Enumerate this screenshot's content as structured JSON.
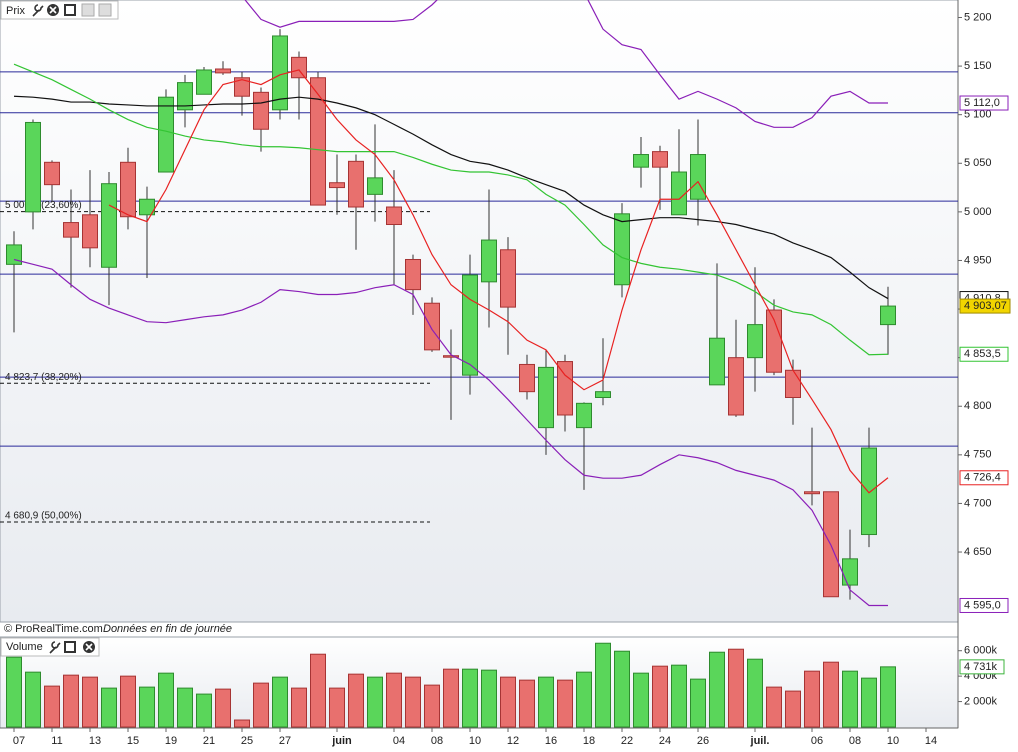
{
  "chart_data": [
    {
      "type": "candlestick",
      "title": "Prix",
      "up_color": "#5ad65a",
      "down_color": "#e8706e",
      "up_edge": "#2e8b2e",
      "down_edge": "#a63434",
      "ylim": [
        4578,
        5218
      ],
      "yticks": [
        {
          "value": 5200,
          "label": "5 200"
        },
        {
          "value": 5150,
          "label": "5 150"
        },
        {
          "value": 5100,
          "label": "5 100"
        },
        {
          "value": 5050,
          "label": "5 050"
        },
        {
          "value": 5000,
          "label": "5 000"
        },
        {
          "value": 4950,
          "label": "4 950"
        },
        {
          "value": 4900,
          "label": "4 900"
        },
        {
          "value": 4850,
          "label": "4 850"
        },
        {
          "value": 4800,
          "label": "4 800"
        },
        {
          "value": 4750,
          "label": "4 750"
        },
        {
          "value": 4700,
          "label": "4 700"
        },
        {
          "value": 4650,
          "label": "4 650"
        }
      ],
      "open": [
        4946,
        5000,
        5051,
        4989,
        4997,
        4943,
        5051,
        4997,
        5041,
        5105,
        5121,
        5147,
        5138,
        5123,
        5105,
        5159,
        5138,
        5030,
        5052,
        5018,
        5005,
        4951,
        4906,
        4852,
        4832,
        4928,
        4961,
        4843,
        4778,
        4846,
        4778,
        4809,
        4925,
        5046,
        5062,
        4997,
        5013,
        4822,
        4850,
        4850,
        4899,
        4837,
        4712,
        4712,
        4616,
        4668,
        4884,
        null,
        null
      ],
      "high": [
        4980,
        5095,
        5053,
        5023,
        5043,
        5041,
        5066,
        5026,
        5126,
        5141,
        5149,
        5155,
        5144,
        5128,
        5188,
        5165,
        5144,
        5059,
        5059,
        5090,
        5043,
        4956,
        4912,
        4879,
        4956,
        5023,
        4974,
        4853,
        4858,
        4853,
        4804,
        4870,
        5009,
        5077,
        5068,
        5085,
        5095,
        4947,
        4889,
        4943,
        4910,
        4848,
        4778,
        4712,
        4673,
        4778,
        4923,
        null,
        null
      ],
      "low": [
        4876,
        4982,
        5010,
        4922,
        4943,
        4904,
        4982,
        4932,
        5041,
        5087,
        5121,
        5141,
        5099,
        5062,
        5095,
        5095,
        5007,
        4997,
        4961,
        4990,
        4925,
        4894,
        4856,
        4786,
        4812,
        4881,
        4853,
        4807,
        4750,
        4774,
        4714,
        4801,
        4912,
        5025,
        5002,
        4997,
        4986,
        4822,
        4789,
        4815,
        4832,
        4781,
        4698,
        4604,
        4601,
        4655,
        4853,
        null,
        null
      ],
      "close": [
        4966,
        5092,
        5028,
        4974,
        4963,
        5029,
        4995,
        5013,
        5118,
        5133,
        5146,
        5143,
        5119,
        5085,
        5181,
        5138,
        5007,
        5025,
        5005,
        5035,
        4987,
        4920,
        4858,
        4851,
        4935,
        4971,
        4902,
        4815,
        4840,
        4791,
        4803,
        4815,
        4998,
        5059,
        5046,
        5041,
        5059,
        4870,
        4791,
        4884,
        4835,
        4809,
        4710,
        4604,
        4643,
        4757,
        4903.07,
        null,
        null
      ],
      "close_label": "4 903,07",
      "close_label_color": "#f2d500",
      "lines": [
        {
          "color": "#111111",
          "last_label": "4 910,8",
          "values": [
            5119,
            5118,
            5116,
            5113,
            5113,
            5111,
            5110,
            5109,
            5109,
            5109,
            5110,
            5111,
            5111,
            5112,
            5116,
            5118,
            5116,
            5112,
            5107,
            5100,
            5090,
            5080,
            5069,
            5059,
            5052,
            5049,
            5043,
            5035,
            5028,
            5021,
            5007,
            4997,
            4990,
            4992,
            4994,
            4994,
            4992,
            4990,
            4987,
            4982,
            4977,
            4968,
            4961,
            4953,
            4938,
            4922,
            4910.8,
            null,
            null
          ]
        },
        {
          "color": "#33c433",
          "last_label": "4 853,5",
          "values": [
            5152,
            5144,
            5136,
            5126,
            5116,
            5105,
            5095,
            5087,
            5083,
            5078,
            5074,
            5072,
            5069,
            5067,
            5067,
            5066,
            5064,
            5062,
            5062,
            5062,
            5062,
            5056,
            5049,
            5043,
            5041,
            5041,
            5038,
            5033,
            5018,
            5007,
            4987,
            4966,
            4953,
            4947,
            4943,
            4941,
            4938,
            4935,
            4928,
            4918,
            4904,
            4897,
            4894,
            4884,
            4868,
            4853,
            4853.5,
            null,
            null
          ]
        },
        {
          "color": "#e82222",
          "last_label": "4 726,4",
          "values": [
            null,
            null,
            null,
            null,
            null,
            5007,
            4997,
            4990,
            5023,
            5064,
            5105,
            5131,
            5136,
            5131,
            5141,
            5146,
            5121,
            5095,
            5074,
            5059,
            5033,
            4997,
            4956,
            4925,
            4910,
            4899,
            4887,
            4868,
            4858,
            4832,
            4817,
            4827,
            4899,
            4961,
            5013,
            5013,
            5031,
            4997,
            4961,
            4925,
            4889,
            4837,
            4807,
            4776,
            4734,
            4711,
            4726.4,
            null,
            null
          ]
        },
        {
          "color": "#8a1fb8",
          "last_label": "5 112,0",
          "values": [
            null,
            null,
            null,
            null,
            null,
            null,
            null,
            null,
            null,
            null,
            null,
            null,
            5222,
            5198,
            5190,
            5196,
            5196,
            5196,
            5196,
            5196,
            5196,
            5198,
            5213,
            5232,
            null,
            null,
            null,
            null,
            null,
            null,
            5226,
            5188,
            5172,
            5167,
            5141,
            5116,
            5124,
            5116,
            5107,
            5093,
            5087,
            5087,
            5097,
            5119,
            5124,
            5112,
            5112.0,
            null,
            null
          ]
        },
        {
          "color": "#8a1fb8",
          "last_label": "4 595,0",
          "values": [
            4951,
            4946,
            4941,
            4925,
            4910,
            4901,
            4894,
            4887,
            4886,
            4889,
            4892,
            4894,
            4899,
            4907,
            4920,
            4918,
            4915,
            4915,
            4917,
            4922,
            4925,
            4915,
            4879,
            4853,
            4843,
            4827,
            4807,
            4786,
            4765,
            4745,
            4729,
            4726,
            4726,
            4729,
            4740,
            4750,
            4747,
            4742,
            4734,
            4729,
            4724,
            4714,
            4693,
            4657,
            4611,
            4595,
            4595.0,
            null,
            null
          ]
        }
      ],
      "hlines": [
        5144,
        5102,
        5011,
        4936,
        4830,
        4759
      ],
      "hline_color": "#2a2a9a",
      "fib_levels": [
        {
          "value": 5000.3,
          "label": "5 000,3 (23,60%)"
        },
        {
          "value": 4823.7,
          "label": "4 823,7 (38,20%)"
        },
        {
          "value": 4680.9,
          "label": "4 680,9 (50,00%)"
        }
      ]
    },
    {
      "type": "bar",
      "title": "Volume",
      "categories": [
        "07",
        null,
        "11",
        null,
        "13",
        null,
        "15",
        null,
        "19",
        null,
        "21",
        null,
        "25",
        null,
        "27",
        null,
        null,
        "juin",
        null,
        null,
        "04",
        null,
        "08",
        null,
        "10",
        null,
        "12",
        null,
        "16",
        null,
        "18",
        null,
        "22",
        null,
        "24",
        null,
        "26",
        null,
        null,
        "juil.",
        null,
        null,
        "06",
        null,
        "08",
        null,
        "10",
        null,
        "14"
      ],
      "values": [
        5490,
        4314,
        3216,
        4078,
        3922,
        3059,
        4000,
        3137,
        4235,
        3059,
        2588,
        2980,
        549,
        3451,
        3922,
        3059,
        5725,
        3059,
        4157,
        3922,
        4235,
        3922,
        3294,
        4549,
        4549,
        4471,
        3922,
        3686,
        3922,
        3686,
        4314,
        6588,
        5961,
        4235,
        4784,
        4863,
        3765,
        5882,
        6118,
        5333,
        3137,
        2824,
        4392,
        5098,
        4392,
        3843,
        4731,
        null,
        null
      ],
      "ylim": [
        0,
        7000
      ],
      "yticks": [
        {
          "value": 6000,
          "label": "6 000k"
        },
        {
          "value": 4000,
          "label": "4 000k"
        },
        {
          "value": 2000,
          "label": "2 000k"
        }
      ],
      "last_label": "4 731k",
      "last_label_color": "#3cb43c"
    }
  ],
  "footer": {
    "source": "© ProRealTime.com",
    "note": "Données en fin de journée"
  }
}
